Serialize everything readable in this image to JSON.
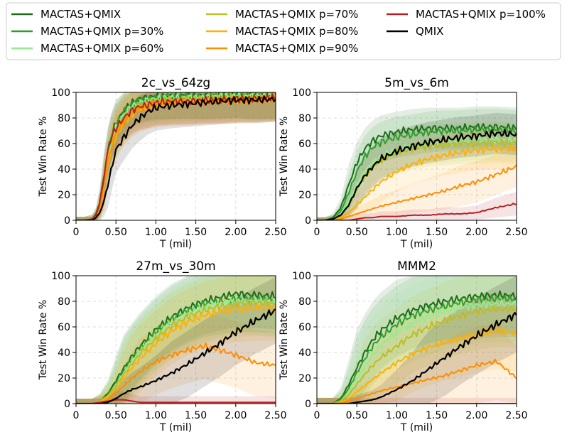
{
  "legend": {
    "placement": "top",
    "columns": 3,
    "entries": [
      {
        "label": "MACTAS+QMIX",
        "color": "#1a6b1a"
      },
      {
        "label": "MACTAS+QMIX p=30%",
        "color": "#2ca02c"
      },
      {
        "label": "MACTAS+QMIX p=60%",
        "color": "#90ee90"
      },
      {
        "label": "MACTAS+QMIX p=70%",
        "color": "#bcbd22"
      },
      {
        "label": "MACTAS+QMIX p=80%",
        "color": "#ffb000"
      },
      {
        "label": "MACTAS+QMIX p=90%",
        "color": "#ff8c00"
      },
      {
        "label": "MACTAS+QMIX p=100%",
        "color": "#b22222"
      },
      {
        "label": "QMIX",
        "color": "#000000"
      }
    ]
  },
  "chart_data": [
    {
      "type": "line",
      "title": "2c_vs_64zg",
      "xlabel": "T (mil)",
      "ylabel": "Test Win Rate %",
      "xlim": [
        0,
        2.5
      ],
      "ylim": [
        0,
        100
      ],
      "xticks": [
        "0",
        "0.50",
        "1.00",
        "1.50",
        "2.00",
        "2.50"
      ],
      "yticks": [
        "0",
        "20",
        "40",
        "60",
        "80",
        "100"
      ],
      "x": [
        0,
        0.1,
        0.2,
        0.25,
        0.3,
        0.35,
        0.4,
        0.45,
        0.5,
        0.6,
        0.7,
        0.8,
        0.9,
        1.0,
        1.2,
        1.4,
        1.6,
        1.8,
        2.0,
        2.25,
        2.5
      ],
      "series": [
        {
          "name": "MACTAS+QMIX",
          "values": [
            0,
            0,
            1,
            5,
            15,
            35,
            55,
            68,
            76,
            86,
            92,
            95,
            96,
            97,
            97,
            98,
            97,
            98,
            98,
            97,
            98
          ]
        },
        {
          "name": "MACTAS+QMIX p=30%",
          "values": [
            0,
            0,
            1,
            4,
            13,
            32,
            53,
            66,
            75,
            85,
            91,
            94,
            95,
            96,
            97,
            97,
            97,
            97,
            98,
            97,
            97
          ]
        },
        {
          "name": "MACTAS+QMIX p=60%",
          "values": [
            0,
            0,
            1,
            4,
            12,
            30,
            50,
            63,
            72,
            83,
            89,
            92,
            94,
            95,
            96,
            96,
            96,
            97,
            97,
            97,
            97
          ]
        },
        {
          "name": "MACTAS+QMIX p=70%",
          "values": [
            0,
            0,
            1,
            3,
            10,
            28,
            47,
            60,
            70,
            80,
            86,
            90,
            92,
            93,
            94,
            95,
            95,
            96,
            96,
            96,
            96
          ]
        },
        {
          "name": "MACTAS+QMIX p=80%",
          "values": [
            0,
            0,
            0,
            3,
            9,
            25,
            44,
            57,
            66,
            76,
            83,
            87,
            89,
            91,
            92,
            93,
            93,
            94,
            94,
            95,
            95
          ]
        },
        {
          "name": "MACTAS+QMIX p=90%",
          "values": [
            0,
            0,
            0,
            3,
            10,
            27,
            46,
            58,
            68,
            77,
            84,
            88,
            90,
            91,
            92,
            92,
            93,
            93,
            94,
            94,
            95
          ]
        },
        {
          "name": "MACTAS+QMIX p=100%",
          "values": [
            0,
            0,
            1,
            4,
            14,
            34,
            55,
            66,
            72,
            80,
            86,
            89,
            90,
            92,
            93,
            93,
            94,
            94,
            95,
            95,
            96
          ]
        },
        {
          "name": "QMIX",
          "values": [
            0,
            0,
            0,
            2,
            6,
            15,
            28,
            42,
            55,
            65,
            74,
            80,
            85,
            88,
            90,
            91,
            92,
            93,
            94,
            94,
            95
          ]
        }
      ]
    },
    {
      "type": "line",
      "title": "5m_vs_6m",
      "xlabel": "T (mil)",
      "ylabel": "Test Win Rate %",
      "xlim": [
        0,
        2.5
      ],
      "ylim": [
        0,
        100
      ],
      "xticks": [
        "0",
        "0.50",
        "1.00",
        "1.50",
        "2.00",
        "2.50"
      ],
      "yticks": [
        "0",
        "20",
        "40",
        "60",
        "80",
        "100"
      ],
      "x": [
        0,
        0.1,
        0.2,
        0.3,
        0.4,
        0.5,
        0.6,
        0.7,
        0.8,
        1.0,
        1.2,
        1.4,
        1.6,
        1.8,
        2.0,
        2.25,
        2.5
      ],
      "series": [
        {
          "name": "MACTAS+QMIX",
          "values": [
            0,
            0,
            2,
            10,
            28,
            45,
            56,
            62,
            66,
            69,
            71,
            72,
            72,
            72,
            73,
            73,
            72
          ]
        },
        {
          "name": "MACTAS+QMIX p=30%",
          "values": [
            0,
            0,
            1,
            7,
            22,
            38,
            50,
            57,
            61,
            65,
            67,
            69,
            70,
            70,
            71,
            71,
            70
          ]
        },
        {
          "name": "MACTAS+QMIX p=60%",
          "values": [
            0,
            0,
            1,
            5,
            15,
            28,
            38,
            45,
            50,
            55,
            58,
            60,
            61,
            62,
            63,
            63,
            62
          ]
        },
        {
          "name": "MACTAS+QMIX p=70%",
          "values": [
            0,
            0,
            1,
            4,
            12,
            24,
            34,
            42,
            47,
            53,
            56,
            58,
            59,
            60,
            60,
            61,
            60
          ]
        },
        {
          "name": "MACTAS+QMIX p=80%",
          "values": [
            0,
            0,
            0,
            2,
            6,
            12,
            18,
            24,
            30,
            38,
            44,
            48,
            51,
            53,
            55,
            56,
            56
          ]
        },
        {
          "name": "MACTAS+QMIX p=90%",
          "values": [
            0,
            0,
            0,
            1,
            3,
            5,
            7,
            9,
            11,
            14,
            17,
            20,
            23,
            27,
            30,
            36,
            42
          ]
        },
        {
          "name": "MACTAS+QMIX p=100%",
          "values": [
            0,
            0,
            0,
            0,
            0,
            1,
            2,
            2,
            3,
            3,
            4,
            4,
            5,
            5,
            6,
            10,
            13
          ]
        },
        {
          "name": "QMIX",
          "values": [
            0,
            0,
            1,
            4,
            12,
            25,
            35,
            42,
            48,
            54,
            58,
            61,
            63,
            65,
            66,
            68,
            67
          ]
        }
      ]
    },
    {
      "type": "line",
      "title": "27m_vs_30m",
      "xlabel": "T (mil)",
      "ylabel": "Test Win Rate %",
      "xlim": [
        0,
        2.5
      ],
      "ylim": [
        0,
        100
      ],
      "xticks": [
        "0",
        "0.50",
        "1.00",
        "1.50",
        "2.00",
        "2.50"
      ],
      "yticks": [
        "0",
        "20",
        "40",
        "60",
        "80",
        "100"
      ],
      "x": [
        0,
        0.1,
        0.2,
        0.3,
        0.4,
        0.5,
        0.6,
        0.7,
        0.8,
        1.0,
        1.2,
        1.4,
        1.6,
        1.8,
        2.0,
        2.25,
        2.5
      ],
      "series": [
        {
          "name": "MACTAS+QMIX",
          "values": [
            0,
            0,
            0,
            2,
            8,
            18,
            28,
            37,
            45,
            58,
            68,
            75,
            80,
            83,
            86,
            85,
            84
          ]
        },
        {
          "name": "MACTAS+QMIX p=30%",
          "values": [
            0,
            0,
            0,
            2,
            7,
            16,
            26,
            35,
            43,
            56,
            66,
            73,
            78,
            80,
            82,
            82,
            81
          ]
        },
        {
          "name": "MACTAS+QMIX p=60%",
          "values": [
            0,
            0,
            0,
            2,
            6,
            15,
            24,
            33,
            41,
            53,
            63,
            70,
            75,
            78,
            80,
            80,
            79
          ]
        },
        {
          "name": "MACTAS+QMIX p=70%",
          "values": [
            0,
            0,
            0,
            2,
            6,
            14,
            23,
            31,
            39,
            51,
            61,
            68,
            73,
            76,
            78,
            79,
            78
          ]
        },
        {
          "name": "MACTAS+QMIX p=80%",
          "values": [
            0,
            0,
            0,
            1,
            5,
            12,
            20,
            28,
            35,
            47,
            57,
            64,
            69,
            72,
            74,
            75,
            75
          ]
        },
        {
          "name": "MACTAS+QMIX p=90%",
          "values": [
            0,
            0,
            0,
            1,
            3,
            8,
            14,
            20,
            25,
            33,
            38,
            42,
            45,
            42,
            38,
            32,
            30
          ]
        },
        {
          "name": "MACTAS+QMIX p=100%",
          "values": [
            0,
            0,
            0,
            1,
            2,
            3,
            3,
            2,
            1,
            1,
            1,
            1,
            1,
            1,
            1,
            1,
            1
          ]
        },
        {
          "name": "QMIX",
          "values": [
            0,
            0,
            0,
            0,
            1,
            4,
            8,
            11,
            13,
            18,
            24,
            31,
            39,
            47,
            56,
            65,
            73
          ]
        }
      ]
    },
    {
      "type": "line",
      "title": "MMM2",
      "xlabel": "T (mil)",
      "ylabel": "Test Win Rate %",
      "xlim": [
        0,
        2.5
      ],
      "ylim": [
        0,
        100
      ],
      "xticks": [
        "0",
        "0.50",
        "1.00",
        "1.50",
        "2.00",
        "2.50"
      ],
      "yticks": [
        "0",
        "20",
        "40",
        "60",
        "80",
        "100"
      ],
      "x": [
        0,
        0.1,
        0.2,
        0.3,
        0.4,
        0.5,
        0.6,
        0.7,
        0.8,
        1.0,
        1.2,
        1.4,
        1.6,
        1.8,
        2.0,
        2.25,
        2.5
      ],
      "series": [
        {
          "name": "MACTAS+QMIX",
          "values": [
            0,
            0,
            0,
            4,
            15,
            28,
            40,
            50,
            57,
            67,
            73,
            77,
            80,
            82,
            84,
            85,
            84
          ]
        },
        {
          "name": "MACTAS+QMIX p=30%",
          "values": [
            0,
            0,
            0,
            3,
            12,
            24,
            35,
            45,
            52,
            62,
            69,
            73,
            76,
            79,
            81,
            82,
            82
          ]
        },
        {
          "name": "MACTAS+QMIX p=60%",
          "values": [
            0,
            0,
            0,
            2,
            9,
            19,
            29,
            38,
            45,
            56,
            63,
            68,
            72,
            75,
            77,
            78,
            78
          ]
        },
        {
          "name": "MACTAS+QMIX p=70%",
          "values": [
            0,
            0,
            0,
            2,
            7,
            15,
            23,
            30,
            36,
            45,
            54,
            60,
            65,
            69,
            72,
            74,
            74
          ]
        },
        {
          "name": "MACTAS+QMIX p=80%",
          "values": [
            0,
            0,
            0,
            1,
            4,
            9,
            14,
            19,
            24,
            32,
            39,
            44,
            48,
            51,
            54,
            57,
            55
          ]
        },
        {
          "name": "MACTAS+QMIX p=90%",
          "values": [
            0,
            0,
            0,
            0,
            2,
            4,
            6,
            8,
            10,
            13,
            16,
            19,
            22,
            26,
            30,
            33,
            20
          ]
        },
        {
          "name": "MACTAS+QMIX p=100%",
          "values": [
            0,
            0,
            0,
            0,
            0,
            0,
            0,
            0,
            0,
            0,
            0,
            0,
            0,
            0,
            0,
            0,
            0
          ]
        },
        {
          "name": "QMIX",
          "values": [
            0,
            0,
            0,
            0,
            0,
            1,
            2,
            3,
            5,
            11,
            18,
            27,
            36,
            45,
            53,
            62,
            70
          ]
        }
      ]
    }
  ]
}
